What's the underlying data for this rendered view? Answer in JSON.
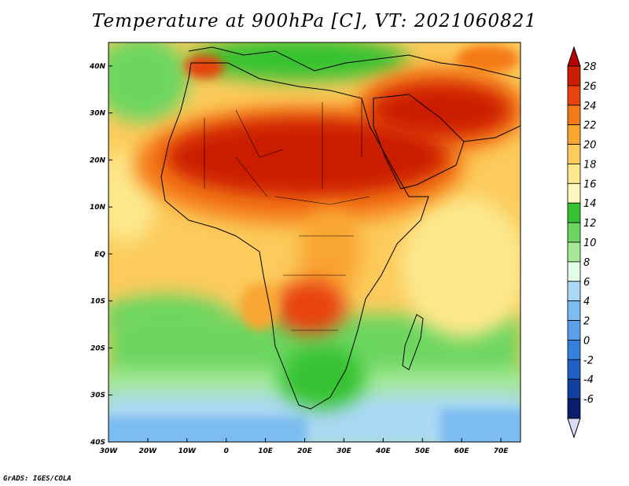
{
  "title": "Temperature at 900hPa [C], VT: 2021060821",
  "credit": "GrADS: IGES/COLA",
  "map": {
    "lon_range": [
      -30,
      75
    ],
    "lat_range": [
      -40,
      45
    ],
    "lon_ticks": [
      {
        "value": -30,
        "label": "30W"
      },
      {
        "value": -20,
        "label": "20W"
      },
      {
        "value": -10,
        "label": "10W"
      },
      {
        "value": 0,
        "label": "0"
      },
      {
        "value": 10,
        "label": "10E"
      },
      {
        "value": 20,
        "label": "20E"
      },
      {
        "value": 30,
        "label": "30E"
      },
      {
        "value": 40,
        "label": "40E"
      },
      {
        "value": 50,
        "label": "50E"
      },
      {
        "value": 60,
        "label": "60E"
      },
      {
        "value": 70,
        "label": "70E"
      }
    ],
    "lat_ticks": [
      {
        "value": 40,
        "label": "40N"
      },
      {
        "value": 30,
        "label": "30N"
      },
      {
        "value": 20,
        "label": "20N"
      },
      {
        "value": 10,
        "label": "10N"
      },
      {
        "value": 0,
        "label": "EQ"
      },
      {
        "value": -10,
        "label": "10S"
      },
      {
        "value": -20,
        "label": "20S"
      },
      {
        "value": -30,
        "label": "30S"
      },
      {
        "value": -40,
        "label": "40S"
      }
    ]
  },
  "colorbar": {
    "levels": [
      "28",
      "26",
      "24",
      "22",
      "20",
      "18",
      "16",
      "14",
      "12",
      "10",
      "8",
      "6",
      "4",
      "2",
      "0",
      "-2",
      "-4",
      "-6"
    ],
    "colors": [
      "#cc1e00",
      "#e8420e",
      "#f47a16",
      "#f9a530",
      "#fccb5c",
      "#fde88c",
      "#fff7bc",
      "#36c232",
      "#6cd660",
      "#a6ea98",
      "#e2fce6",
      "#aad8f5",
      "#7dbcf0",
      "#5aa0e8",
      "#3580dc",
      "#2060c4",
      "#1040a0",
      "#0a1e6e"
    ],
    "top_arrow_color": "#b80000",
    "bottom_arrow_color": "#d8dcf8"
  }
}
